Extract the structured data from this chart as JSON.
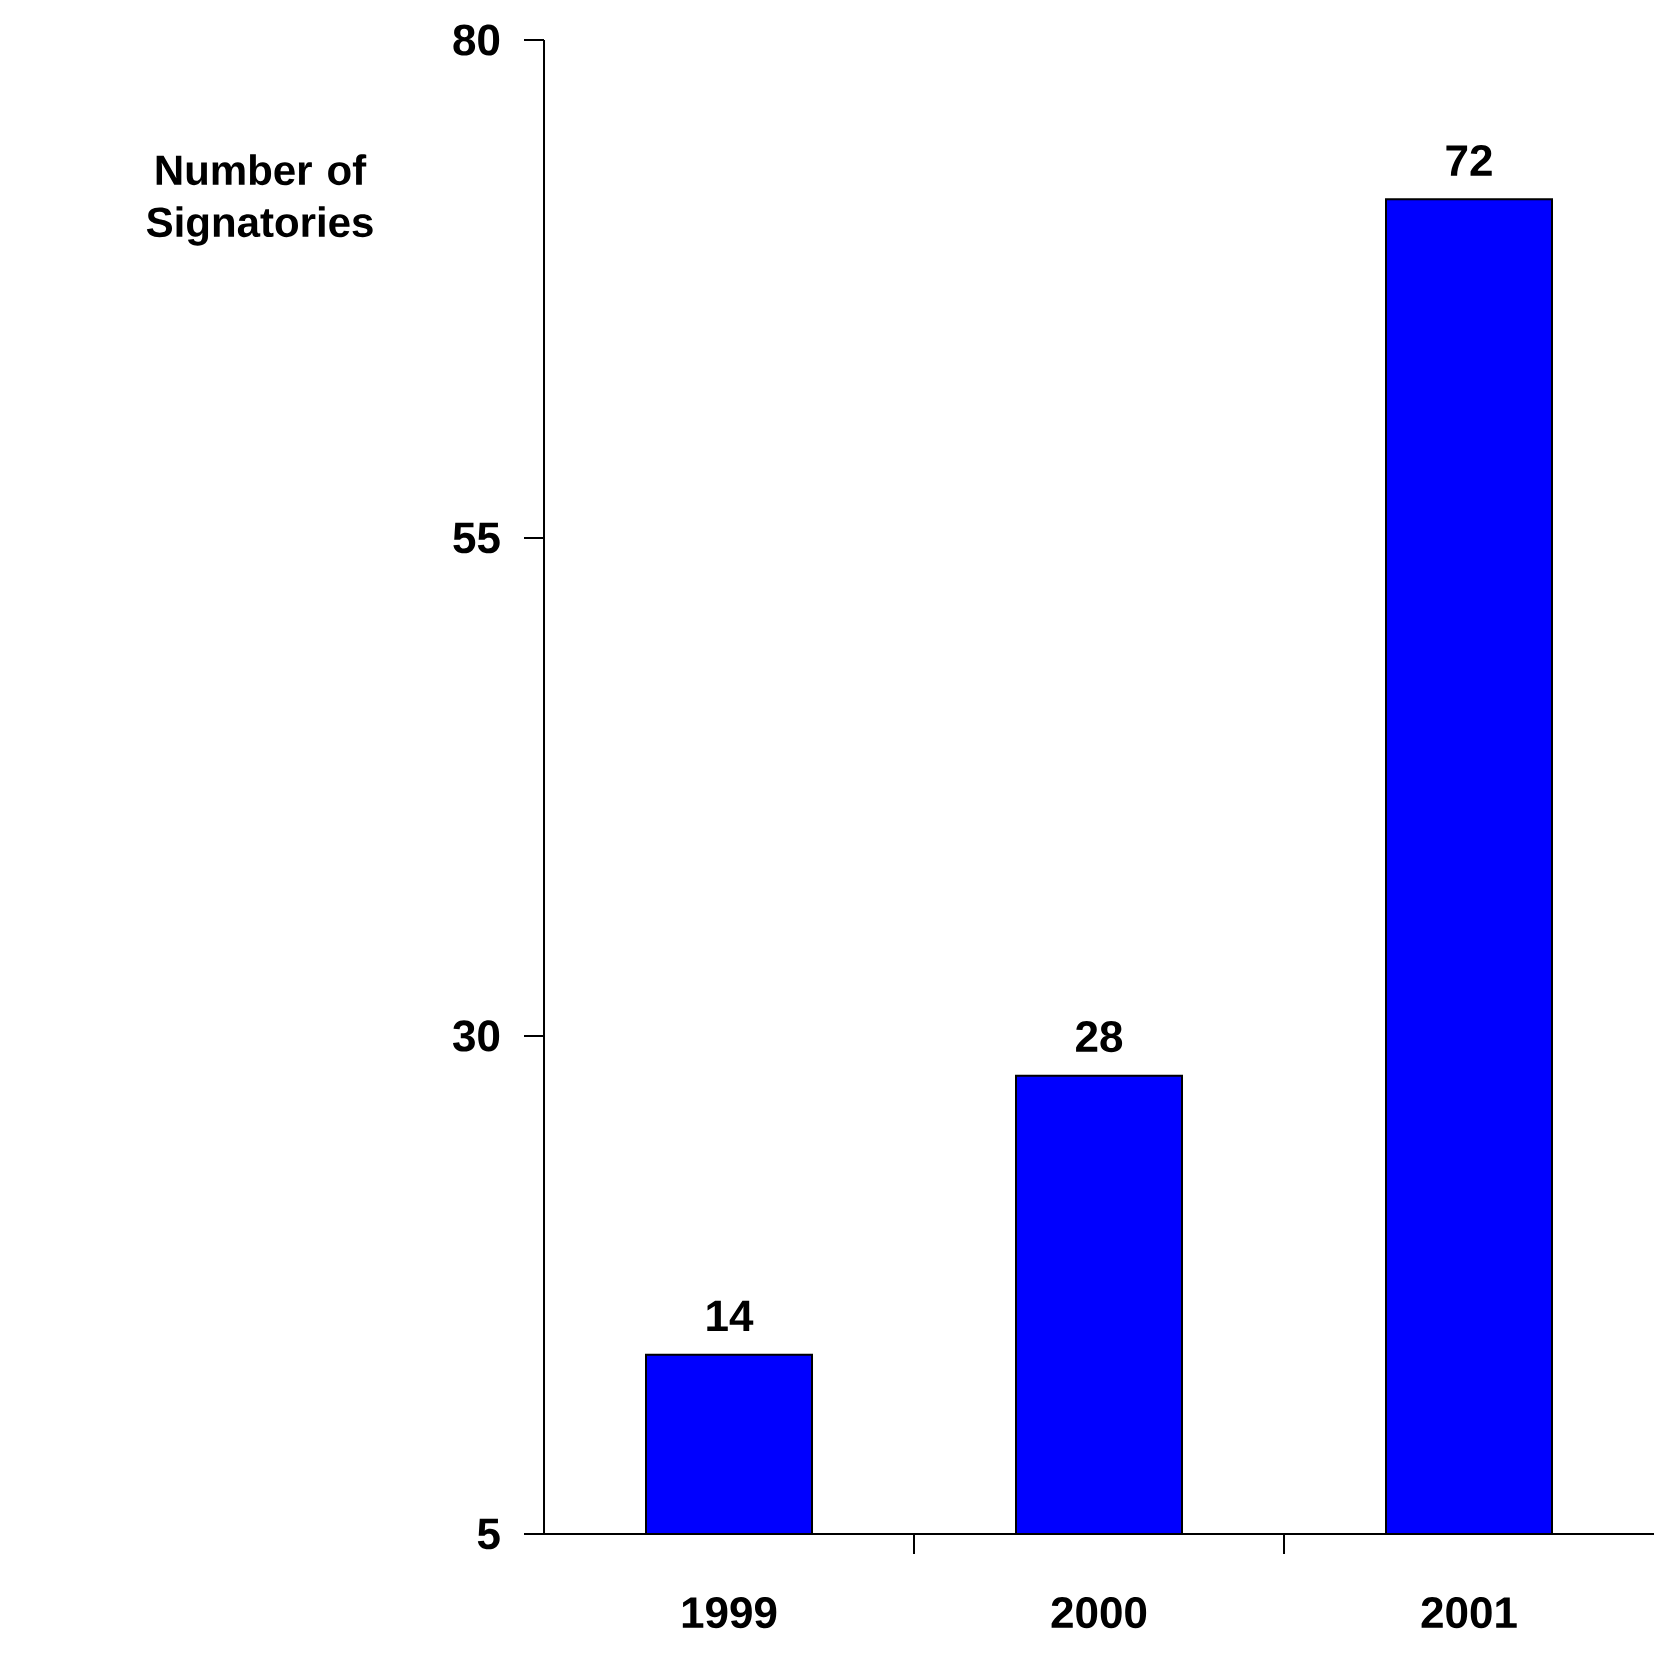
{
  "chart_data": {
    "type": "bar",
    "ylabel": "Number of Signatories",
    "categories": [
      "1999",
      "2000",
      "2001"
    ],
    "values": [
      14,
      28,
      72
    ],
    "color": "#0000ff",
    "ylim": [
      5,
      80
    ],
    "yticks": [
      5,
      30,
      55,
      80
    ],
    "data_labels": true,
    "grid": false
  }
}
